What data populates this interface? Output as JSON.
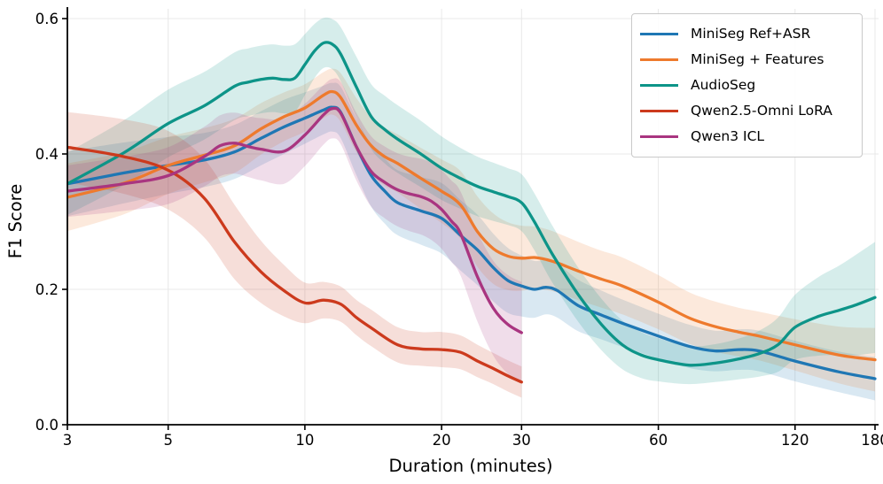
{
  "colors": {
    "grid": "#e8e8e8",
    "spine": "#000000",
    "text": "#000000",
    "legend_border": "#c9c9c9",
    "legend_bg": "#ffffff"
  },
  "chart_data": {
    "type": "line",
    "title": "",
    "xlabel": "Duration (minutes)",
    "ylabel": "F1 Score",
    "x_scale": "log",
    "xlim": [
      3,
      180
    ],
    "ylim": [
      0,
      0.615
    ],
    "grid": true,
    "legend_position": "upper right",
    "x_ticks": [
      3,
      5,
      10,
      20,
      30,
      60,
      120,
      180
    ],
    "x_tick_labels": [
      "3",
      "5",
      "10",
      "20",
      "30",
      "60",
      "120",
      "180"
    ],
    "y_ticks": [
      0.0,
      0.2,
      0.4,
      0.6
    ],
    "y_tick_labels": [
      "0.0",
      "0.2",
      "0.4",
      "0.6"
    ],
    "band_opacity": 0.17,
    "series": [
      {
        "name": "MiniSeg Ref+ASR",
        "color": "#1f77b4",
        "x": [
          3,
          4,
          5,
          6,
          7,
          8,
          9,
          10,
          11,
          11.5,
          12,
          13,
          14,
          15,
          16,
          18,
          20,
          22,
          24,
          26,
          28,
          30,
          32,
          34,
          36,
          40,
          45,
          50,
          60,
          70,
          80,
          90,
          100,
          120,
          150,
          180
        ],
        "y": [
          0.356,
          0.372,
          0.383,
          0.391,
          0.403,
          0.423,
          0.44,
          0.453,
          0.465,
          0.469,
          0.461,
          0.41,
          0.368,
          0.345,
          0.328,
          0.316,
          0.305,
          0.28,
          0.258,
          0.232,
          0.213,
          0.205,
          0.2,
          0.203,
          0.198,
          0.176,
          0.162,
          0.15,
          0.131,
          0.116,
          0.109,
          0.111,
          0.109,
          0.094,
          0.078,
          0.068
        ],
        "band": [
          0.048,
          0.045,
          0.042,
          0.04,
          0.04,
          0.04,
          0.04,
          0.038,
          0.036,
          0.036,
          0.038,
          0.042,
          0.046,
          0.048,
          0.048,
          0.05,
          0.052,
          0.052,
          0.052,
          0.05,
          0.048,
          0.045,
          0.042,
          0.04,
          0.04,
          0.038,
          0.036,
          0.035,
          0.033,
          0.032,
          0.03,
          0.03,
          0.03,
          0.03,
          0.03,
          0.032
        ]
      },
      {
        "name": "MiniSeg + Features",
        "color": "#ee7a2d",
        "x": [
          3,
          4,
          5,
          6,
          7,
          8,
          9,
          10,
          11,
          11.5,
          12,
          13,
          14,
          15,
          16,
          18,
          20,
          22,
          24,
          26,
          28,
          30,
          32,
          34,
          36,
          40,
          45,
          50,
          60,
          70,
          80,
          90,
          100,
          120,
          150,
          180
        ],
        "y": [
          0.336,
          0.357,
          0.383,
          0.398,
          0.412,
          0.437,
          0.455,
          0.468,
          0.487,
          0.492,
          0.483,
          0.442,
          0.412,
          0.396,
          0.386,
          0.364,
          0.345,
          0.325,
          0.285,
          0.26,
          0.249,
          0.246,
          0.247,
          0.244,
          0.239,
          0.227,
          0.215,
          0.205,
          0.181,
          0.158,
          0.145,
          0.137,
          0.131,
          0.118,
          0.103,
          0.096
        ],
        "band": [
          0.05,
          0.046,
          0.042,
          0.04,
          0.04,
          0.038,
          0.036,
          0.035,
          0.034,
          0.034,
          0.036,
          0.04,
          0.042,
          0.043,
          0.043,
          0.045,
          0.047,
          0.05,
          0.052,
          0.052,
          0.05,
          0.048,
          0.046,
          0.045,
          0.044,
          0.043,
          0.042,
          0.042,
          0.04,
          0.038,
          0.037,
          0.036,
          0.036,
          0.038,
          0.042,
          0.047
        ]
      },
      {
        "name": "AudioSeg",
        "color": "#0d9488",
        "x": [
          3,
          4,
          5,
          6,
          7,
          7.5,
          8,
          8.5,
          9,
          9.5,
          10,
          10.5,
          11,
          11.5,
          12,
          13,
          14,
          15,
          16,
          18,
          20,
          22,
          24,
          26,
          28,
          30,
          32,
          35,
          40,
          45,
          50,
          55,
          60,
          70,
          80,
          90,
          100,
          110,
          120,
          135,
          150,
          165,
          180
        ],
        "y": [
          0.356,
          0.402,
          0.445,
          0.471,
          0.5,
          0.506,
          0.51,
          0.512,
          0.51,
          0.512,
          0.532,
          0.552,
          0.564,
          0.562,
          0.547,
          0.498,
          0.455,
          0.436,
          0.422,
          0.4,
          0.379,
          0.364,
          0.352,
          0.344,
          0.337,
          0.328,
          0.3,
          0.253,
          0.192,
          0.148,
          0.118,
          0.103,
          0.096,
          0.088,
          0.091,
          0.097,
          0.105,
          0.118,
          0.144,
          0.16,
          0.169,
          0.178,
          0.188
        ],
        "band": [
          0.046,
          0.048,
          0.05,
          0.05,
          0.05,
          0.05,
          0.05,
          0.05,
          0.05,
          0.05,
          0.045,
          0.04,
          0.037,
          0.037,
          0.04,
          0.045,
          0.048,
          0.05,
          0.05,
          0.049,
          0.047,
          0.045,
          0.044,
          0.043,
          0.042,
          0.042,
          0.042,
          0.042,
          0.04,
          0.038,
          0.036,
          0.034,
          0.032,
          0.028,
          0.028,
          0.03,
          0.034,
          0.04,
          0.048,
          0.058,
          0.066,
          0.075,
          0.082
        ]
      },
      {
        "name": "Qwen2.5-Omni LoRA",
        "color": "#cc3a1d",
        "x": [
          3,
          4,
          5,
          6,
          7,
          8,
          9,
          10,
          11,
          12,
          13,
          14,
          16,
          18,
          20,
          22,
          24,
          26,
          28,
          30
        ],
        "y": [
          0.41,
          0.396,
          0.376,
          0.335,
          0.27,
          0.226,
          0.198,
          0.18,
          0.184,
          0.178,
          0.158,
          0.143,
          0.118,
          0.112,
          0.111,
          0.107,
          0.094,
          0.083,
          0.072,
          0.063
        ],
        "band": [
          0.052,
          0.055,
          0.058,
          0.058,
          0.055,
          0.046,
          0.038,
          0.03,
          0.027,
          0.026,
          0.026,
          0.027,
          0.026,
          0.025,
          0.026,
          0.025,
          0.024,
          0.023,
          0.023,
          0.023
        ]
      },
      {
        "name": "Qwen3 ICL",
        "color": "#a93580",
        "x": [
          3,
          4,
          5,
          6,
          6.5,
          7,
          7.5,
          8,
          9,
          10,
          11,
          11.5,
          12,
          13,
          14,
          15,
          16,
          17,
          18,
          19,
          20,
          21,
          22,
          24,
          26,
          28,
          30
        ],
        "y": [
          0.345,
          0.356,
          0.368,
          0.396,
          0.412,
          0.416,
          0.411,
          0.407,
          0.404,
          0.428,
          0.458,
          0.467,
          0.46,
          0.41,
          0.374,
          0.358,
          0.347,
          0.341,
          0.337,
          0.33,
          0.318,
          0.301,
          0.283,
          0.218,
          0.172,
          0.148,
          0.136
        ],
        "band": [
          0.038,
          0.04,
          0.042,
          0.044,
          0.045,
          0.045,
          0.045,
          0.046,
          0.048,
          0.046,
          0.044,
          0.044,
          0.046,
          0.05,
          0.052,
          0.053,
          0.054,
          0.055,
          0.056,
          0.057,
          0.058,
          0.06,
          0.062,
          0.066,
          0.07,
          0.073,
          0.075
        ]
      }
    ]
  }
}
